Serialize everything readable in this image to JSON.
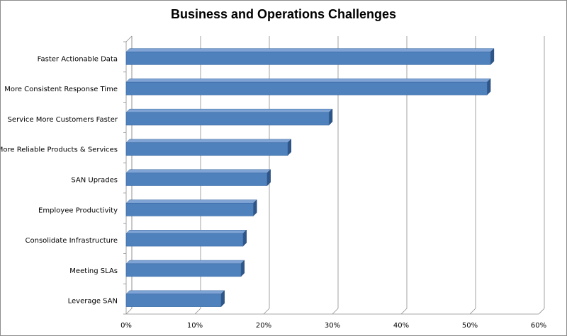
{
  "chart_data": {
    "type": "bar",
    "orientation": "horizontal",
    "title": "Business and Operations Challenges",
    "categories": [
      "Faster Actionable Data",
      "More Consistent Response Time",
      "Service More Customers Faster",
      "More Reliable Products & Services",
      "SAN Uprades",
      "Employee Productivity",
      "Consolidate Infrastructure",
      "Meeting SLAs",
      "Leverage SAN"
    ],
    "values": [
      53,
      52.5,
      29.5,
      23.5,
      20.5,
      18.5,
      17,
      16.7,
      13.8
    ],
    "xlim": [
      0,
      60
    ],
    "xticks": [
      "0%",
      "10%",
      "20%",
      "30%",
      "40%",
      "50%",
      "60%"
    ],
    "grid": true,
    "legend": "none",
    "colors": {
      "bar_front": "#4f81bd",
      "bar_top": "#7ea3d4",
      "bar_side": "#2f5689",
      "grid": "#8c8c8c"
    }
  }
}
